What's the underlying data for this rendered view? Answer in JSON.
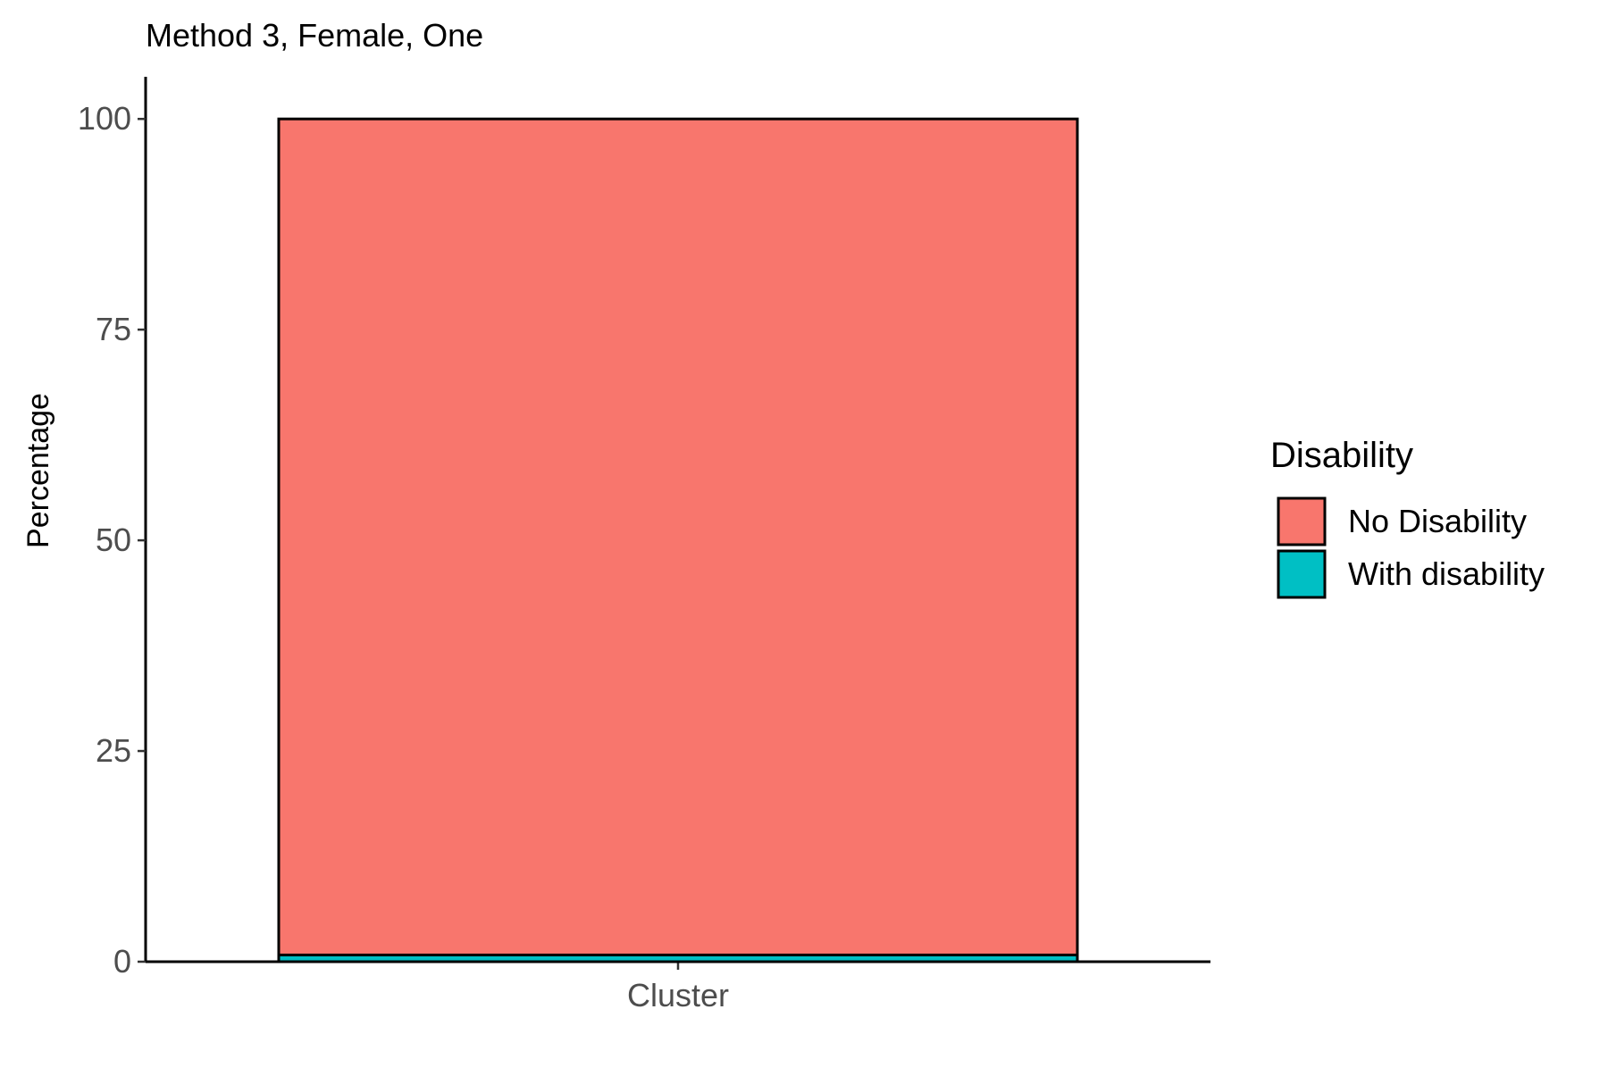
{
  "chart_data": {
    "type": "bar",
    "stacked": true,
    "title": "Method 3, Female, One",
    "xlabel": "",
    "ylabel": "Percentage",
    "categories": [
      "Cluster"
    ],
    "ylim": [
      0,
      105
    ],
    "yticks": [
      0,
      25,
      50,
      75,
      100
    ],
    "grid": false,
    "legend": {
      "title": "Disability",
      "position": "right"
    },
    "series": [
      {
        "name": "With disability",
        "color": "#00BFC4",
        "values": [
          0.8
        ]
      },
      {
        "name": "No Disability",
        "color": "#F8766D",
        "values": [
          99.2
        ]
      }
    ],
    "legend_order": [
      "No Disability",
      "With disability"
    ]
  }
}
